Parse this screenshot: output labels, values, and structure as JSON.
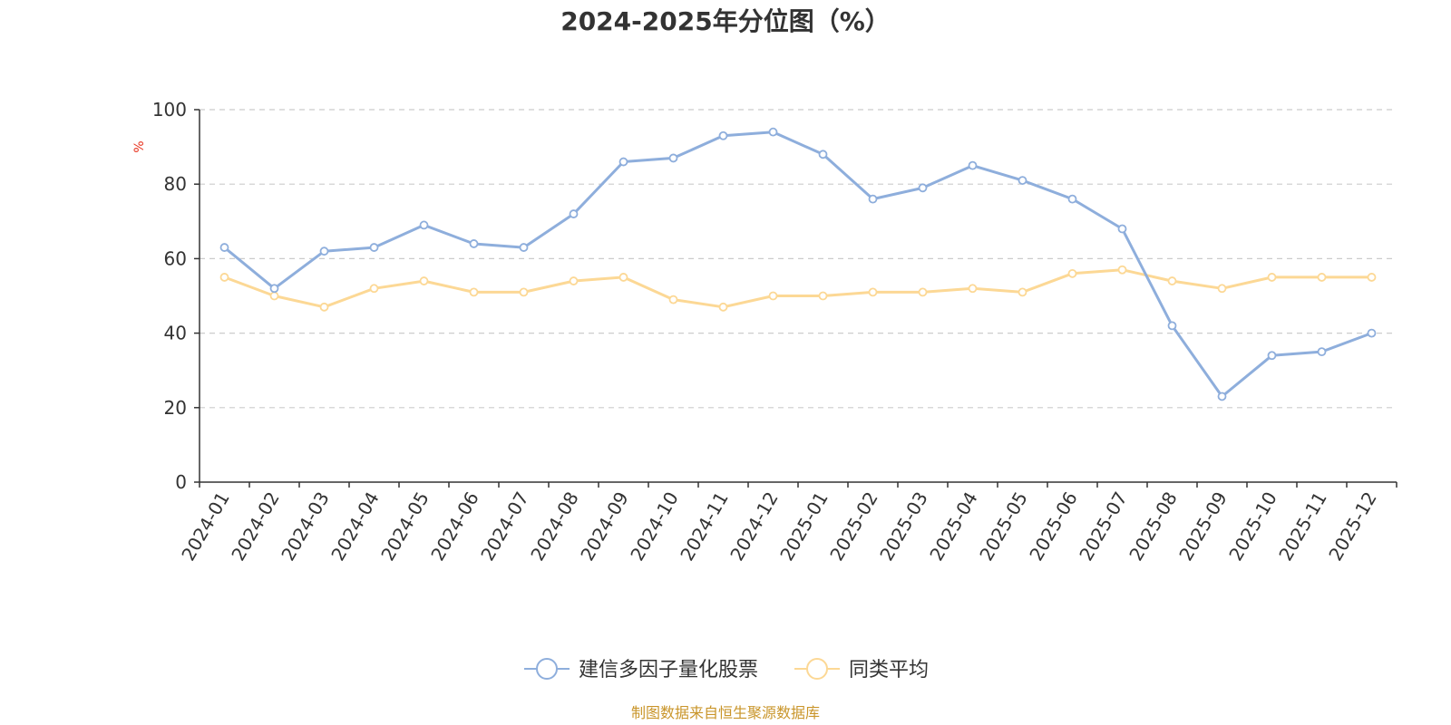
{
  "chart_data": {
    "type": "line",
    "title": "2024-2025年分位图（%）",
    "ylabel": "%",
    "xlabel": "",
    "ylim": [
      0,
      100
    ],
    "yticks": [
      "0",
      "20",
      "40",
      "60",
      "80",
      "100"
    ],
    "grid": true,
    "legend_position": "bottom-center",
    "categories": [
      "2024-01",
      "2024-02",
      "2024-03",
      "2024-04",
      "2024-05",
      "2024-06",
      "2024-07",
      "2024-08",
      "2024-09",
      "2024-10",
      "2024-11",
      "2024-12",
      "2025-01",
      "2025-02",
      "2025-03",
      "2025-04",
      "2025-05",
      "2025-06",
      "2025-07",
      "2025-08",
      "2025-09",
      "2025-10",
      "2025-11",
      "2025-12"
    ],
    "series": [
      {
        "name": "建信多因子量化股票",
        "color": "#8eaedc",
        "values": [
          63,
          52,
          62,
          63,
          69,
          64,
          63,
          72,
          86,
          87,
          93,
          94,
          88,
          76,
          79,
          85,
          81,
          76,
          68,
          42,
          23,
          34,
          35,
          40
        ]
      },
      {
        "name": "同类平均",
        "color": "#fcd895",
        "values": [
          55,
          50,
          47,
          52,
          54,
          51,
          51,
          54,
          55,
          49,
          47,
          50,
          50,
          51,
          51,
          52,
          51,
          56,
          57,
          54,
          52,
          55,
          55,
          55
        ]
      }
    ],
    "source": "制图数据来自恒生聚源数据库"
  },
  "colors": {
    "unit_label": "#e8321e",
    "source_text": "#c9952a",
    "grid": "#cccccc",
    "axis": "#333333"
  }
}
